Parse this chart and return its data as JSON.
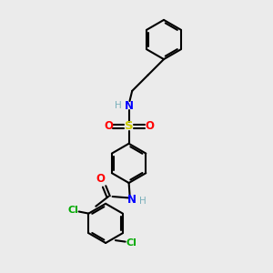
{
  "bg_color": "#ebebeb",
  "bond_color": "#000000",
  "bond_width": 1.5,
  "dbo": 0.008,
  "atom_colors": {
    "H": "#7ab0bc",
    "N": "#0000ff",
    "O": "#ff0000",
    "S": "#cccc00",
    "Cl": "#00aa00"
  },
  "font_size": 7.5,
  "figsize": [
    3.0,
    3.0
  ],
  "dpi": 100
}
